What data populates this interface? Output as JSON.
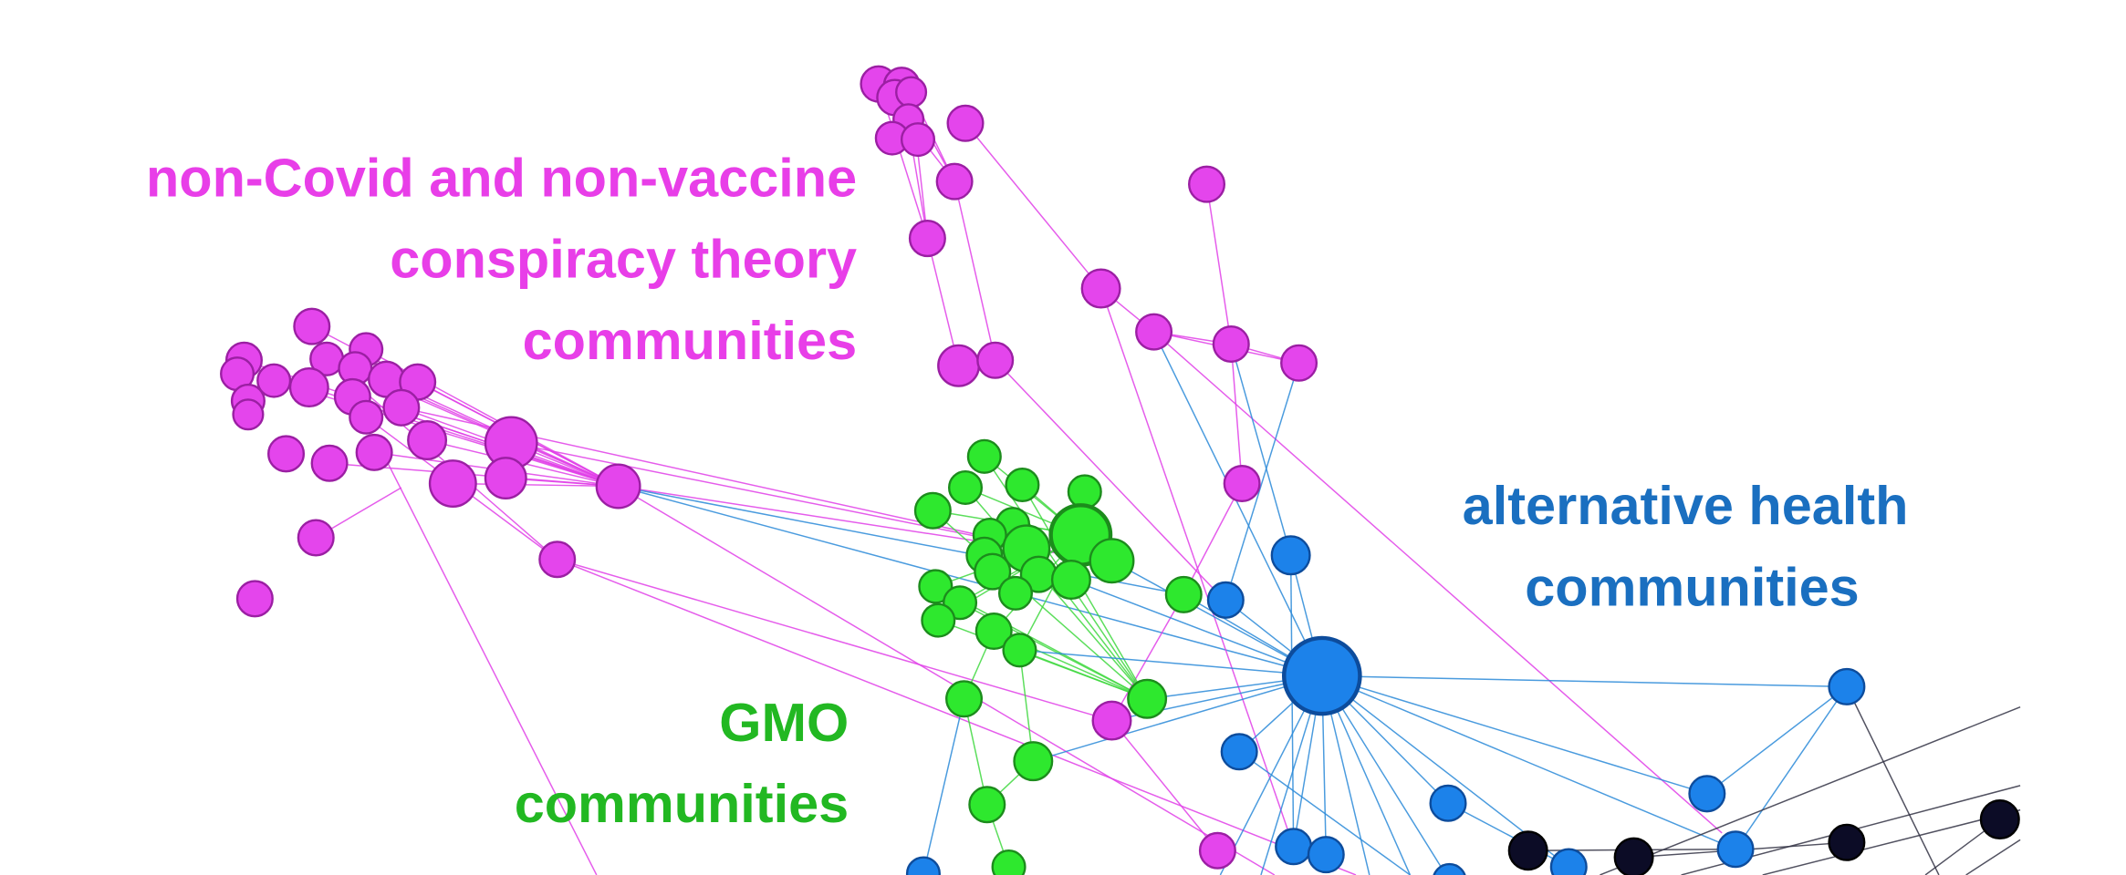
{
  "labels": {
    "conspiracy": [
      "non-Covid and non-vaccine",
      "conspiracy theory",
      "communities"
    ],
    "alternative_health": [
      "alternative health",
      "communities"
    ],
    "gmo": [
      "GMO",
      "communities"
    ]
  }
}
